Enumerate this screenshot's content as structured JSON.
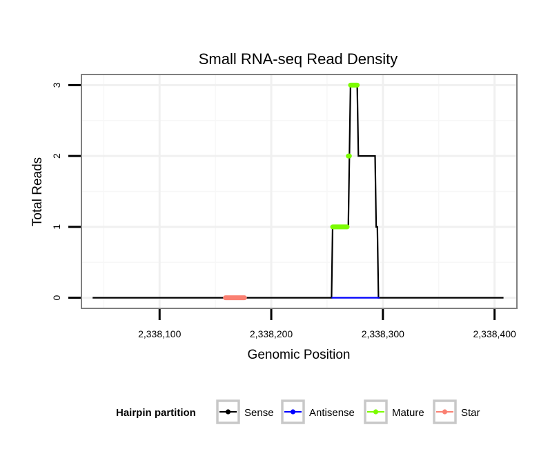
{
  "chart_data": {
    "type": "line",
    "title": "Small RNA-seq Read Density",
    "xlabel": "Genomic Position",
    "ylabel": "Total Reads",
    "xlim": [
      2338030,
      2338420
    ],
    "ylim": [
      -0.15,
      3.15
    ],
    "grid": true,
    "x_ticks": [
      2338100,
      2338200,
      2338300,
      2338400
    ],
    "x_tick_labels": [
      "2,338,100",
      "2,338,200",
      "2,338,300",
      "2,338,400"
    ],
    "y_ticks": [
      0,
      1,
      2,
      3
    ],
    "y_tick_labels": [
      "0",
      "1",
      "2",
      "3"
    ],
    "legend": {
      "title": "Hairpin partition",
      "placement": "bottom",
      "entries": [
        {
          "name": "Sense",
          "color": "#000000"
        },
        {
          "name": "Antisense",
          "color": "#0000ff"
        },
        {
          "name": "Mature",
          "color": "#7cfc00"
        },
        {
          "name": "Star",
          "color": "#fa8072"
        }
      ]
    },
    "series": [
      {
        "name": "Sense",
        "color": "#000000",
        "style": "step",
        "points": [
          [
            2338040,
            0
          ],
          [
            2338254,
            0
          ],
          [
            2338255,
            1
          ],
          [
            2338269,
            1
          ],
          [
            2338270,
            2
          ],
          [
            2338271,
            3
          ],
          [
            2338277,
            3
          ],
          [
            2338278,
            2
          ],
          [
            2338293,
            2
          ],
          [
            2338294,
            1
          ],
          [
            2338295,
            1
          ],
          [
            2338296,
            0
          ],
          [
            2338408,
            0
          ]
        ]
      },
      {
        "name": "Antisense",
        "color": "#0000ff",
        "style": "line",
        "points": [
          [
            2338254,
            0
          ],
          [
            2338297,
            0
          ]
        ]
      },
      {
        "name": "Mature",
        "color": "#7cfc00",
        "style": "segments",
        "segments": [
          {
            "x_start": 2338255,
            "x_end": 2338268,
            "y": 1
          },
          {
            "x_start": 2338269,
            "x_end": 2338270,
            "y": 2
          },
          {
            "x_start": 2338271,
            "x_end": 2338277,
            "y": 3
          }
        ]
      },
      {
        "name": "Star",
        "color": "#fa8072",
        "style": "segments",
        "segments": [
          {
            "x_start": 2338159,
            "x_end": 2338176,
            "y": 0
          }
        ]
      }
    ]
  }
}
